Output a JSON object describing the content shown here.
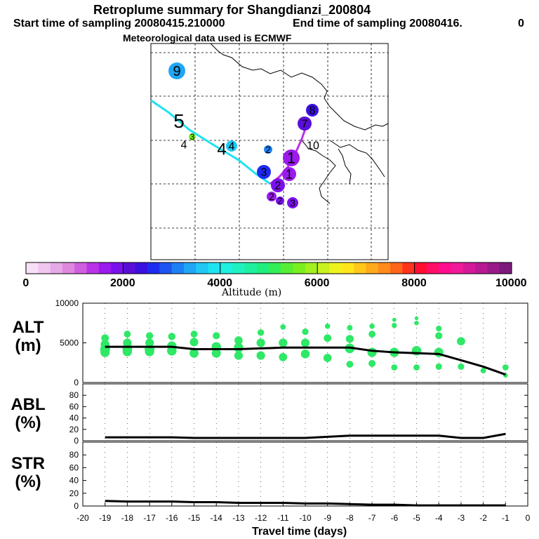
{
  "header": {
    "title": "Retroplume summary for Shangdianzi_200804",
    "start_label": "Start time of sampling 20080415.210000",
    "end_label": "End time of sampling 20080416.",
    "end_suffix": "0",
    "met": "Meteorological data used is ECMWF"
  },
  "colorbar": {
    "ticks": [
      "0",
      "2000",
      "4000",
      "6000",
      "8000",
      "10000"
    ],
    "label": "Altitude (m)",
    "colors": [
      "#f7e0f7",
      "#efc6ef",
      "#e6a8e6",
      "#dd88dd",
      "#cf5fdf",
      "#bb33e6",
      "#9b1aee",
      "#7b10ee",
      "#5a0fd8",
      "#3a10e0",
      "#1b2cf0",
      "#1e55f2",
      "#1f7ff4",
      "#1fa6f6",
      "#1fc8f5",
      "#1fe3f0",
      "#1ff0e0",
      "#1ff2c0",
      "#1ff0a0",
      "#1fee7f",
      "#33ee55",
      "#55ee33",
      "#7bee1f",
      "#a2f01f",
      "#c8f21f",
      "#eef21f",
      "#ffe61a",
      "#ffc81a",
      "#ffaa1a",
      "#ff8c1a",
      "#ff661a",
      "#ff331a",
      "#ff0d33",
      "#ff0d66",
      "#ff0d8c",
      "#f01a9b",
      "#d41a99",
      "#b81a94",
      "#9a1a8a",
      "#7a1a7a"
    ]
  },
  "map": {
    "markers": [
      {
        "label": "9",
        "color": "#1fa6f6"
      },
      {
        "label": "8",
        "color": "#3a10e0"
      },
      {
        "label": "7",
        "color": "#5a0fd8"
      },
      {
        "label": "5",
        "color": "#1fe3f0"
      },
      {
        "label": "4",
        "color": "#1fe3f0"
      },
      {
        "label": "3",
        "color": "#7bee1f"
      },
      {
        "label": "4",
        "color": "#1fc8f5"
      },
      {
        "label": "4",
        "color": "#1fe3f0"
      },
      {
        "label": "2",
        "color": "#1f7ff4"
      },
      {
        "label": "10",
        "color": "#1fe3f0"
      },
      {
        "label": "1",
        "color": "#9b1aee"
      },
      {
        "label": "3",
        "color": "#1b2cf0"
      },
      {
        "label": "1",
        "color": "#9b1aee"
      },
      {
        "label": "2",
        "color": "#7b10ee"
      },
      {
        "label": "2",
        "color": "#9b1aee"
      },
      {
        "label": "2",
        "color": "#7b10ee"
      },
      {
        "label": "3",
        "color": "#7b10ee"
      }
    ]
  },
  "panels": [
    {
      "id": "alt",
      "ylabel": [
        "ALT",
        "(m)"
      ],
      "yticks": [
        0,
        5000,
        10000
      ],
      "ymax": 10000
    },
    {
      "id": "abl",
      "ylabel": [
        "ABL",
        "(%)"
      ],
      "yticks": [
        0,
        20,
        40,
        60,
        80
      ],
      "ymax": 100
    },
    {
      "id": "str",
      "ylabel": [
        "STR",
        "(%)"
      ],
      "yticks": [
        0,
        20,
        40,
        60,
        80
      ],
      "ymax": 100
    }
  ],
  "chart_data": {
    "type": "line",
    "title": "Retroplume summary for Shangdianzi_200804",
    "xlabel": "Travel time (days)",
    "xlim": [
      -20,
      0
    ],
    "x": [
      -19,
      -18,
      -17,
      -16,
      -15,
      -14,
      -13,
      -12,
      -11,
      -10,
      -9,
      -8,
      -7,
      -6,
      -5,
      -4,
      -3,
      -2,
      -1
    ],
    "series": [
      {
        "name": "ALT (m)",
        "values": [
          4500,
          4500,
          4500,
          4500,
          4200,
          4200,
          4200,
          4300,
          4400,
          4400,
          4400,
          4400,
          4000,
          3800,
          3700,
          3600,
          2800,
          2000,
          1000
        ]
      },
      {
        "name": "ABL (%)",
        "values": [
          6,
          6,
          6,
          6,
          5,
          5,
          5,
          5,
          5,
          5,
          7,
          9,
          9,
          9,
          9,
          9,
          5,
          5,
          12
        ]
      },
      {
        "name": "STR (%)",
        "values": [
          8,
          7,
          7,
          7,
          6,
          6,
          5,
          5,
          5,
          4,
          4,
          3,
          2,
          2,
          1,
          1,
          1,
          1,
          1
        ]
      }
    ],
    "alt_clusters": [
      {
        "x": -19,
        "alts": [
          5600,
          4800,
          4200,
          3800
        ]
      },
      {
        "x": -18,
        "alts": [
          6100,
          5000,
          4300,
          3900
        ]
      },
      {
        "x": -17,
        "alts": [
          5900,
          5000,
          4200,
          3900
        ]
      },
      {
        "x": -16,
        "alts": [
          5800,
          4600,
          4000
        ]
      },
      {
        "x": -15,
        "alts": [
          6100,
          5100,
          3700
        ]
      },
      {
        "x": -14,
        "alts": [
          5900,
          4500,
          3700
        ]
      },
      {
        "x": -13,
        "alts": [
          5300,
          4400,
          3400
        ]
      },
      {
        "x": -12,
        "alts": [
          6300,
          5000,
          3400
        ]
      },
      {
        "x": -11,
        "alts": [
          7000,
          5000,
          3200
        ]
      },
      {
        "x": -10,
        "alts": [
          6400,
          5000,
          3600
        ]
      },
      {
        "x": -9,
        "alts": [
          7100,
          5600,
          3100
        ]
      },
      {
        "x": -8,
        "alts": [
          6900,
          5500,
          4300,
          2300
        ]
      },
      {
        "x": -7,
        "alts": [
          7100,
          6100,
          3800,
          2400
        ]
      },
      {
        "x": -6,
        "alts": [
          7900,
          7200,
          3800,
          1900
        ]
      },
      {
        "x": -5,
        "alts": [
          8100,
          7500,
          4000,
          1900
        ]
      },
      {
        "x": -4,
        "alts": [
          6800,
          5900,
          3800,
          2000
        ]
      },
      {
        "x": -3,
        "alts": [
          5200,
          2000
        ]
      },
      {
        "x": -2,
        "alts": [
          1500
        ]
      },
      {
        "x": -1,
        "alts": [
          1900,
          900
        ]
      }
    ],
    "xtick_labels": [
      "-20",
      "-19",
      "-18",
      "-17",
      "-16",
      "-15",
      "-14",
      "-13",
      "-12",
      "-11",
      "-10",
      "-9",
      "-8",
      "-7",
      "-6",
      "-5",
      "-4",
      "-3",
      "-2",
      "-1",
      "0"
    ]
  }
}
